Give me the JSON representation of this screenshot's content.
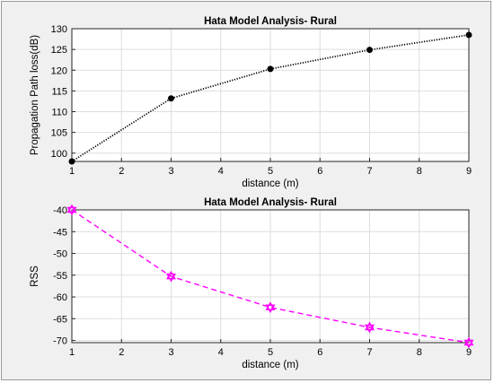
{
  "chart_data": [
    {
      "type": "line",
      "title": "Hata Model Analysis- Rural",
      "xlabel": "distance (m)",
      "ylabel": "Propagation Path loss(dB)",
      "xlim": [
        1,
        9
      ],
      "ylim": [
        98,
        130
      ],
      "xticks": [
        1,
        2,
        3,
        4,
        5,
        6,
        7,
        8,
        9
      ],
      "yticks": [
        100,
        105,
        110,
        115,
        120,
        125,
        130
      ],
      "grid": true,
      "color": "#000000",
      "line_style": "dotted",
      "marker": "filled-circle",
      "series": [
        {
          "x": [
            1,
            3,
            5,
            7,
            9
          ],
          "values": [
            98.0,
            113.2,
            120.3,
            124.9,
            128.5
          ]
        }
      ]
    },
    {
      "type": "line",
      "title": "Hata Model Analysis- Rural",
      "xlabel": "distance (m)",
      "ylabel": "RSS",
      "xlim": [
        1,
        9
      ],
      "ylim": [
        -70.5,
        -40
      ],
      "xticks": [
        1,
        2,
        3,
        4,
        5,
        6,
        7,
        8,
        9
      ],
      "yticks": [
        -40,
        -45,
        -50,
        -55,
        -60,
        -65,
        -70
      ],
      "grid": true,
      "color": "#ff00ff",
      "line_style": "dashed",
      "marker": "hexagram",
      "series": [
        {
          "x": [
            1,
            3,
            5,
            7,
            9
          ],
          "values": [
            -40.0,
            -55.3,
            -62.4,
            -67.0,
            -70.5
          ]
        }
      ]
    }
  ]
}
